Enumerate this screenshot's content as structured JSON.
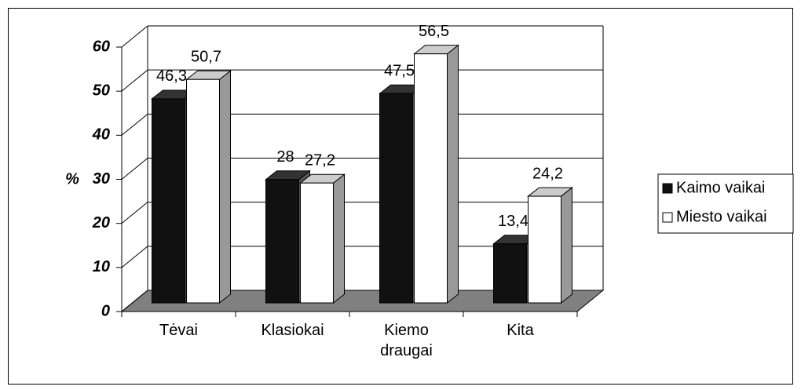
{
  "chart_data": {
    "type": "bar",
    "y_label": "%",
    "categories": [
      "Tėvai",
      "Klasiokai",
      "Kiemo draugai",
      "Kita"
    ],
    "series": [
      {
        "name": "Kaimo vaikai",
        "color": "#111111",
        "values": [
          46.3,
          28,
          47.5,
          13.4
        ],
        "value_labels": [
          "46,3",
          "28",
          "47,5",
          "13,4"
        ]
      },
      {
        "name": "Miesto vaikai",
        "color": "#ffffff",
        "values": [
          50.7,
          27.2,
          56.5,
          24.2
        ],
        "value_labels": [
          "50,7",
          "27,2",
          "56,5",
          "24,2"
        ]
      }
    ],
    "ylim": [
      0,
      60
    ],
    "yticks": [
      0,
      10,
      20,
      30,
      40,
      50,
      60
    ],
    "grid": true,
    "legend": "right"
  }
}
